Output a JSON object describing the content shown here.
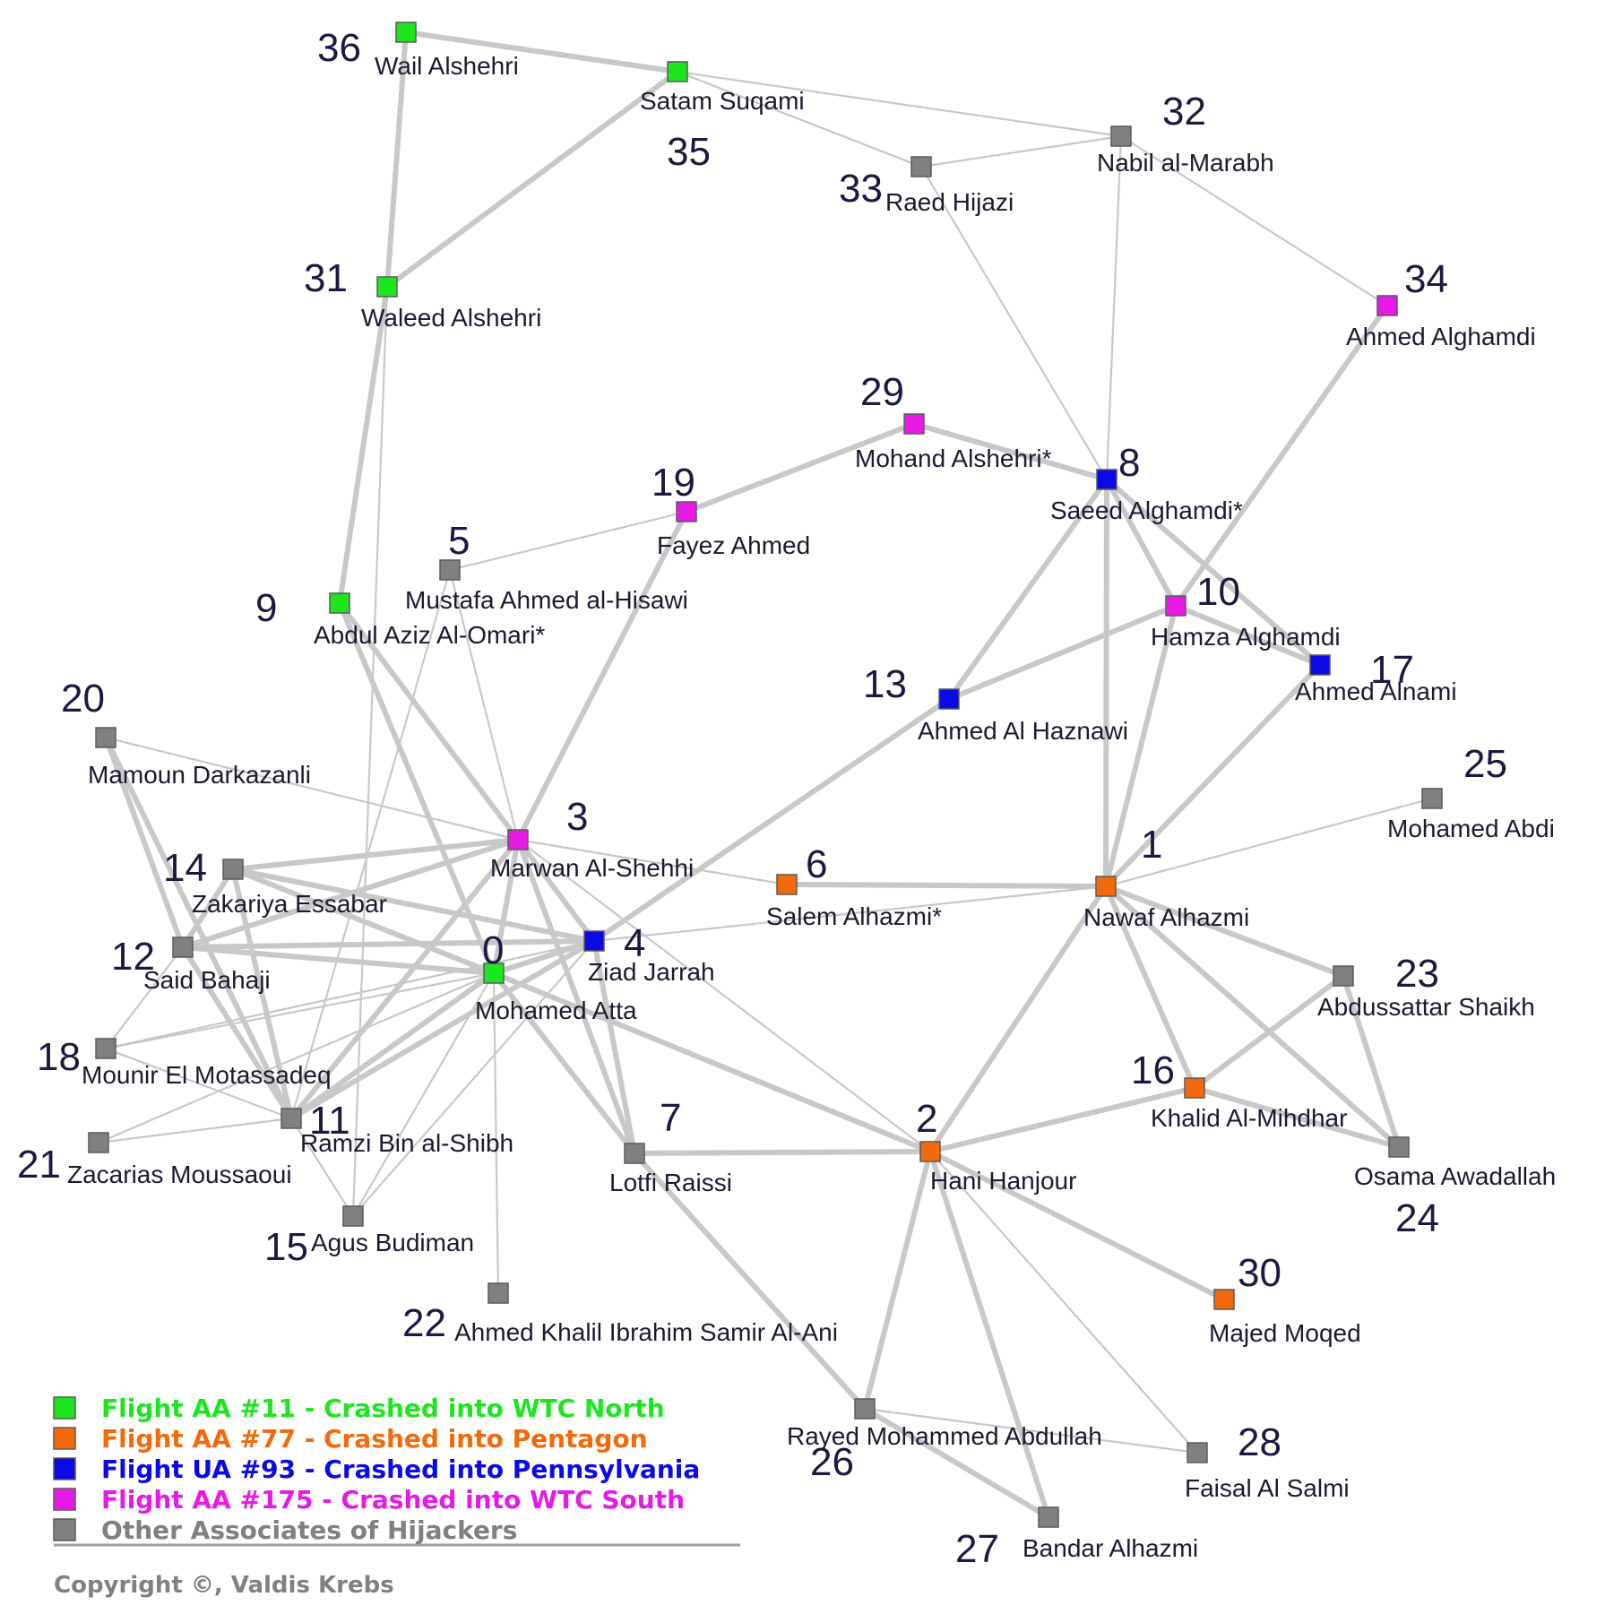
{
  "colors": {
    "flight_aa11": "#1ee61e",
    "flight_aa77": "#f26a0c",
    "flight_ua93": "#0a0ae6",
    "flight_aa175": "#e619e6",
    "associate": "#808080",
    "edge": "#c8c8c8"
  },
  "nodes": [
    {
      "id": 0,
      "name": "Mohamed Atta",
      "group": "flight_aa11"
    },
    {
      "id": 1,
      "name": "Nawaf Alhazmi",
      "group": "flight_aa77"
    },
    {
      "id": 2,
      "name": "Hani Hanjour",
      "group": "flight_aa77"
    },
    {
      "id": 3,
      "name": "Marwan Al-Shehhi",
      "group": "flight_aa175"
    },
    {
      "id": 4,
      "name": "Ziad Jarrah",
      "group": "flight_ua93"
    },
    {
      "id": 5,
      "name": "Mustafa Ahmed al-Hisawi",
      "group": "associate"
    },
    {
      "id": 6,
      "name": "Salem Alhazmi*",
      "group": "flight_aa77"
    },
    {
      "id": 7,
      "name": "Lotfi Raissi",
      "group": "associate"
    },
    {
      "id": 8,
      "name": "Saeed Alghamdi*",
      "group": "flight_ua93"
    },
    {
      "id": 9,
      "name": "Abdul Aziz Al-Omari*",
      "group": "flight_aa11"
    },
    {
      "id": 10,
      "name": "Hamza Alghamdi",
      "group": "flight_aa175"
    },
    {
      "id": 11,
      "name": "Ramzi Bin al-Shibh",
      "group": "associate"
    },
    {
      "id": 12,
      "name": "Said Bahaji",
      "group": "associate"
    },
    {
      "id": 13,
      "name": "Ahmed Al Haznawi",
      "group": "flight_ua93"
    },
    {
      "id": 14,
      "name": "Zakariya Essabar",
      "group": "associate"
    },
    {
      "id": 15,
      "name": "Agus Budiman",
      "group": "associate"
    },
    {
      "id": 16,
      "name": "Khalid Al-Mihdhar",
      "group": "flight_aa77"
    },
    {
      "id": 17,
      "name": "Ahmed Alnami",
      "group": "flight_ua93"
    },
    {
      "id": 18,
      "name": "Mounir El Motassadeq",
      "group": "associate"
    },
    {
      "id": 19,
      "name": "Fayez Ahmed",
      "group": "flight_aa175"
    },
    {
      "id": 20,
      "name": "Mamoun Darkazanli",
      "group": "associate"
    },
    {
      "id": 21,
      "name": "Zacarias Moussaoui",
      "group": "associate"
    },
    {
      "id": 22,
      "name": "Ahmed Khalil Ibrahim Samir Al-Ani",
      "group": "associate"
    },
    {
      "id": 23,
      "name": "Abdussattar Shaikh",
      "group": "associate"
    },
    {
      "id": 24,
      "name": "Osama Awadallah",
      "group": "associate"
    },
    {
      "id": 25,
      "name": "Mohamed Abdi",
      "group": "associate"
    },
    {
      "id": 26,
      "name": "Rayed Mohammed Abdullah",
      "group": "associate"
    },
    {
      "id": 27,
      "name": "Bandar Alhazmi",
      "group": "associate"
    },
    {
      "id": 28,
      "name": "Faisal Al Salmi",
      "group": "associate"
    },
    {
      "id": 29,
      "name": "Mohand Alshehri*",
      "group": "flight_aa175"
    },
    {
      "id": 30,
      "name": "Majed Moqed",
      "group": "flight_aa77"
    },
    {
      "id": 31,
      "name": "Waleed Alshehri",
      "group": "flight_aa11"
    },
    {
      "id": 32,
      "name": "Nabil al-Marabh",
      "group": "associate"
    },
    {
      "id": 33,
      "name": "Raed Hijazi",
      "group": "associate"
    },
    {
      "id": 34,
      "name": "Ahmed Alghamdi",
      "group": "flight_aa175"
    },
    {
      "id": 35,
      "name": "Satam Suqami",
      "group": "flight_aa11"
    },
    {
      "id": 36,
      "name": "Wail Alshehri",
      "group": "flight_aa11"
    }
  ],
  "edges": [
    [
      36,
      35,
      "strong"
    ],
    [
      36,
      31,
      "strong"
    ],
    [
      35,
      31,
      "strong"
    ],
    [
      35,
      32,
      "weak"
    ],
    [
      35,
      33,
      "weak"
    ],
    [
      31,
      9,
      "strong"
    ],
    [
      31,
      15,
      "weak"
    ],
    [
      33,
      32,
      "weak"
    ],
    [
      33,
      8,
      "weak"
    ],
    [
      32,
      8,
      "weak"
    ],
    [
      32,
      34,
      "weak"
    ],
    [
      34,
      10,
      "strong"
    ],
    [
      29,
      19,
      "strong"
    ],
    [
      29,
      8,
      "strong"
    ],
    [
      19,
      3,
      "strong"
    ],
    [
      19,
      5,
      "weak"
    ],
    [
      5,
      3,
      "weak"
    ],
    [
      5,
      11,
      "weak"
    ],
    [
      9,
      0,
      "strong"
    ],
    [
      9,
      3,
      "strong"
    ],
    [
      8,
      10,
      "strong"
    ],
    [
      8,
      17,
      "strong"
    ],
    [
      8,
      13,
      "strong"
    ],
    [
      8,
      1,
      "strong"
    ],
    [
      10,
      13,
      "strong"
    ],
    [
      10,
      17,
      "strong"
    ],
    [
      10,
      1,
      "strong"
    ],
    [
      17,
      1,
      "strong"
    ],
    [
      13,
      4,
      "strong"
    ],
    [
      20,
      12,
      "strong"
    ],
    [
      20,
      11,
      "strong"
    ],
    [
      20,
      3,
      "weak"
    ],
    [
      14,
      3,
      "strong"
    ],
    [
      14,
      12,
      "strong"
    ],
    [
      14,
      0,
      "strong"
    ],
    [
      14,
      4,
      "strong"
    ],
    [
      14,
      11,
      "strong"
    ],
    [
      12,
      3,
      "strong"
    ],
    [
      12,
      0,
      "strong"
    ],
    [
      12,
      4,
      "strong"
    ],
    [
      12,
      11,
      "strong"
    ],
    [
      12,
      18,
      "weak"
    ],
    [
      3,
      0,
      "strong"
    ],
    [
      3,
      4,
      "strong"
    ],
    [
      3,
      6,
      "weak"
    ],
    [
      3,
      7,
      "strong"
    ],
    [
      3,
      11,
      "strong"
    ],
    [
      0,
      4,
      "strong"
    ],
    [
      0,
      7,
      "strong"
    ],
    [
      0,
      11,
      "strong"
    ],
    [
      0,
      15,
      "weak"
    ],
    [
      0,
      22,
      "weak"
    ],
    [
      0,
      18,
      "weak"
    ],
    [
      0,
      21,
      "weak"
    ],
    [
      4,
      7,
      "strong"
    ],
    [
      4,
      11,
      "strong"
    ],
    [
      4,
      1,
      "weak"
    ],
    [
      4,
      15,
      "weak"
    ],
    [
      4,
      18,
      "weak"
    ],
    [
      18,
      11,
      "weak"
    ],
    [
      21,
      11,
      "weak"
    ],
    [
      11,
      15,
      "weak"
    ],
    [
      6,
      1,
      "strong"
    ],
    [
      1,
      25,
      "weak"
    ],
    [
      1,
      23,
      "strong"
    ],
    [
      1,
      16,
      "strong"
    ],
    [
      1,
      24,
      "strong"
    ],
    [
      1,
      2,
      "strong"
    ],
    [
      16,
      23,
      "strong"
    ],
    [
      16,
      24,
      "strong"
    ],
    [
      16,
      2,
      "strong"
    ],
    [
      23,
      24,
      "strong"
    ],
    [
      7,
      2,
      "strong"
    ],
    [
      7,
      26,
      "strong"
    ],
    [
      2,
      26,
      "strong"
    ],
    [
      2,
      27,
      "strong"
    ],
    [
      2,
      30,
      "strong"
    ],
    [
      2,
      28,
      "weak"
    ],
    [
      26,
      27,
      "strong"
    ],
    [
      26,
      28,
      "weak"
    ],
    [
      0,
      2,
      "strong"
    ],
    [
      3,
      2,
      "weak"
    ]
  ],
  "legend": [
    {
      "group": "flight_aa11",
      "label": "Flight AA #11 - Crashed into WTC North",
      "color": "#1ee61e"
    },
    {
      "group": "flight_aa77",
      "label": "Flight AA #77 - Crashed into Pentagon",
      "color": "#f26a0c"
    },
    {
      "group": "flight_ua93",
      "label": "Flight UA #93 - Crashed into Pennsylvania",
      "color": "#0a0ae6"
    },
    {
      "group": "flight_aa175",
      "label": "Flight AA #175 - Crashed into WTC South",
      "color": "#e619e6"
    },
    {
      "group": "associate",
      "label": "Other Associates of Hijackers",
      "color": "#808080"
    }
  ],
  "copyright": "Copyright ©, Valdis Krebs"
}
